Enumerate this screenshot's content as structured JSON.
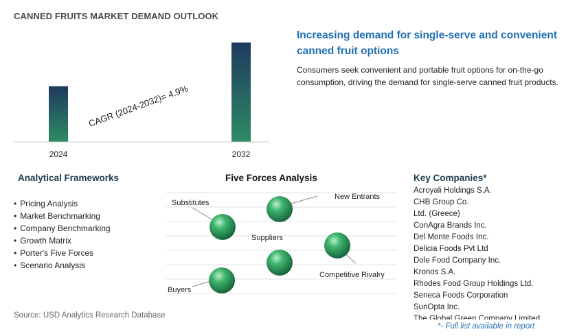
{
  "header": {
    "title": "CANNED FRUITS MARKET DEMAND OUTLOOK"
  },
  "chart_data": {
    "type": "bar",
    "categories": [
      "2024",
      "2032"
    ],
    "values": [
      0.56,
      1.0
    ],
    "annotation": "CAGR (2024-2032)=   4.9%"
  },
  "highlight": {
    "headline": "Increasing demand for single-serve and convenient canned fruit options",
    "description": "Consumers seek convenient and portable fruit options for on-the-go consumption, driving the demand for single-serve canned fruit products."
  },
  "frameworks": {
    "title": "Analytical Frameworks",
    "items": [
      "Pricing Analysis",
      "Market Benchmarking",
      "Company Benchmarking",
      "Growth Matrix",
      "Porter's Five Forces",
      "Scenario Analysis"
    ]
  },
  "five_forces": {
    "title": "Five Forces Analysis",
    "labels": {
      "substitutes": "Substitutes",
      "new_entrants": "New Entrants",
      "suppliers": "Suppliers",
      "competitive_rivalry": "Competitive Rivalry",
      "buyers": "Buyers"
    }
  },
  "companies": {
    "title": "Key Companies*",
    "items": [
      "Acroyali Holdings S.A.",
      "CHB Group Co.",
      "Ltd. (Greece)",
      "ConAgra Brands Inc.",
      "Del Monte Foods Inc.",
      "Delicia Foods Pvt Ltd",
      "Dole Food Company Inc.",
      "Kronos S.A.",
      "Rhodes Food Group Holdings Ltd.",
      "Seneca Foods Corporation",
      "SunOpta Inc.",
      "The Global Green Company Limited"
    ],
    "note": "*- Full list available in report"
  },
  "footer": {
    "source": "Source: USD Analytics Research Database"
  },
  "colors": {
    "accent_blue": "#1f6fb2",
    "bar_top": "#1e3a5f",
    "bar_bottom": "#2e8b64",
    "sphere": "#2e9a5c"
  }
}
